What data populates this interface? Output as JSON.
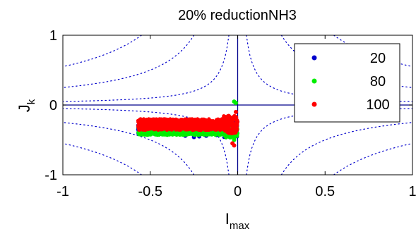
{
  "chart_data": {
    "type": "scatter",
    "title": "20% reductionNH3",
    "xlabel": {
      "main": "I",
      "sub": "max"
    },
    "ylabel": {
      "main": "J",
      "sub": "k"
    },
    "xlim": [
      -1,
      1
    ],
    "ylim": [
      -1,
      1
    ],
    "x_ticks": [
      {
        "value": -1,
        "label": "-1"
      },
      {
        "value": -0.5,
        "label": "-0.5"
      },
      {
        "value": 0,
        "label": "0"
      },
      {
        "value": 0.5,
        "label": "0.5"
      },
      {
        "value": 1,
        "label": "1"
      }
    ],
    "y_ticks": [
      {
        "value": -1,
        "label": "-1"
      },
      {
        "value": 0,
        "label": "0"
      },
      {
        "value": 1,
        "label": "1"
      }
    ],
    "grid": false,
    "legend_position": "top-right",
    "reference_lines": {
      "x": 0,
      "y": 0,
      "color": "#00008b"
    },
    "background_contours": {
      "style": "dotted",
      "color": "#0000cc",
      "hyperbola_levels": [
        0.05,
        0.25,
        0.55
      ]
    },
    "series": [
      {
        "name": "20",
        "color": "#0000cc",
        "x_range": [
          -0.57,
          0.0
        ],
        "y_center": -0.35,
        "y_spread": 0.07,
        "points": [
          [
            -0.3,
            -0.44
          ],
          [
            -0.25,
            -0.46
          ],
          [
            -0.22,
            -0.45
          ],
          [
            -0.18,
            -0.44
          ],
          [
            -0.12,
            -0.43
          ]
        ]
      },
      {
        "name": "80",
        "color": "#00ee00",
        "x_range": [
          -0.57,
          0.0
        ],
        "y_center": -0.37,
        "y_spread": 0.06,
        "points": [
          [
            -0.02,
            0.05
          ],
          [
            -0.01,
            0.03
          ],
          [
            -0.02,
            -0.5
          ],
          [
            -0.04,
            -0.45
          ],
          [
            -0.3,
            -0.42
          ],
          [
            -0.45,
            -0.41
          ]
        ]
      },
      {
        "name": "100",
        "color": "#ff0000",
        "x_range": [
          -0.57,
          0.0
        ],
        "y_center": -0.28,
        "y_spread": 0.08,
        "points": [
          [
            -0.03,
            -0.55
          ],
          [
            -0.02,
            -0.58
          ],
          [
            -0.01,
            -0.1
          ],
          [
            -0.05,
            -0.2
          ]
        ]
      }
    ]
  }
}
